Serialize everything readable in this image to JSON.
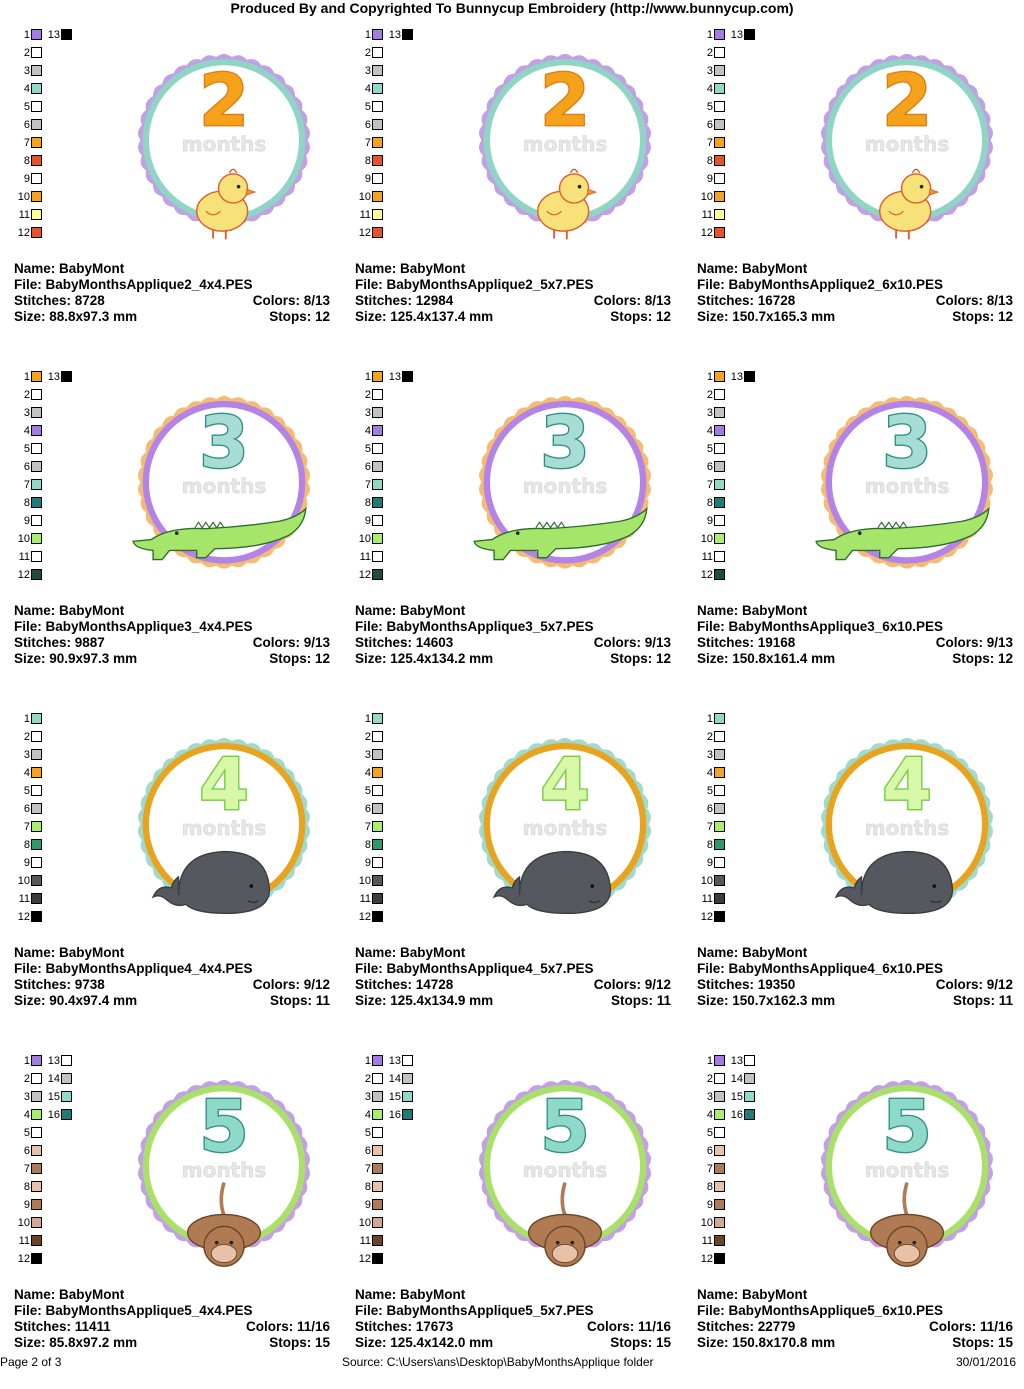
{
  "header": "Produced By and Copyrighted To Bunnycup Embroidery (http://www.bunnycup.com)",
  "footer": {
    "page": "Page 2 of 3",
    "source": "Source: C:\\Users\\ans\\Desktop\\BabyMonthsApplique folder",
    "date": "30/01/2016"
  },
  "groups": [
    {
      "digit": "2",
      "months": "months",
      "animal": "chick",
      "colors": {
        "frame_outer": "#b98ee0",
        "frame_inner": "#8fd4c4",
        "digit_fill": "#f5a21b",
        "digit_edge": "#e07c12",
        "animal": "#f7e27a",
        "animal_edge": "#e05a2a"
      },
      "swatches": [
        {
          "n": "1",
          "c": "#a37be6"
        },
        {
          "n": "2",
          "c": "#ffffff"
        },
        {
          "n": "3",
          "c": "#c2c2c2"
        },
        {
          "n": "4",
          "c": "#8fd9c8"
        },
        {
          "n": "5",
          "c": "#ffffff"
        },
        {
          "n": "6",
          "c": "#c2c2c2"
        },
        {
          "n": "7",
          "c": "#f7a21b"
        },
        {
          "n": "8",
          "c": "#e8522a"
        },
        {
          "n": "9",
          "c": "#ffffff"
        },
        {
          "n": "10",
          "c": "#f7a21b"
        },
        {
          "n": "11",
          "c": "#ffff9a"
        },
        {
          "n": "12",
          "c": "#e8522a"
        },
        {
          "n": "13",
          "c": "#000000"
        }
      ],
      "designs": [
        {
          "name": "Name: BabyMont",
          "file": "File: BabyMonthsApplique2_4x4.PES",
          "stitches": "Stitches: 8728",
          "colors": "Colors: 8/13",
          "size": "Size: 88.8x97.3 mm",
          "stops": "Stops: 12"
        },
        {
          "name": "Name: BabyMont",
          "file": "File: BabyMonthsApplique2_5x7.PES",
          "stitches": "Stitches: 12984",
          "colors": "Colors: 8/13",
          "size": "Size: 125.4x137.4 mm",
          "stops": "Stops: 12"
        },
        {
          "name": "Name: BabyMont",
          "file": "File: BabyMonthsApplique2_6x10.PES",
          "stitches": "Stitches: 16728",
          "colors": "Colors: 8/13",
          "size": "Size: 150.7x165.3 mm",
          "stops": "Stops: 12"
        }
      ]
    },
    {
      "digit": "3",
      "months": "months",
      "animal": "alligator",
      "colors": {
        "frame_outer": "#f2b05a",
        "frame_inner": "#b483e6",
        "digit_fill": "#a8ddd6",
        "digit_edge": "#2f8f8a",
        "animal": "#a5e66a",
        "animal_edge": "#2e6b2e"
      },
      "swatches": [
        {
          "n": "1",
          "c": "#f7a21b"
        },
        {
          "n": "2",
          "c": "#ffffff"
        },
        {
          "n": "3",
          "c": "#c2c2c2"
        },
        {
          "n": "4",
          "c": "#a37be6"
        },
        {
          "n": "5",
          "c": "#ffffff"
        },
        {
          "n": "6",
          "c": "#c2c2c2"
        },
        {
          "n": "7",
          "c": "#8fd9c8"
        },
        {
          "n": "8",
          "c": "#1f7a7a"
        },
        {
          "n": "9",
          "c": "#ffffff"
        },
        {
          "n": "10",
          "c": "#a8f06a"
        },
        {
          "n": "11",
          "c": "#ffffff"
        },
        {
          "n": "12",
          "c": "#1e4d3a"
        },
        {
          "n": "13",
          "c": "#000000"
        }
      ],
      "designs": [
        {
          "name": "Name: BabyMont",
          "file": "File: BabyMonthsApplique3_4x4.PES",
          "stitches": "Stitches: 9887",
          "colors": "Colors: 9/13",
          "size": "Size: 90.9x97.3 mm",
          "stops": "Stops: 12"
        },
        {
          "name": "Name: BabyMont",
          "file": "File: BabyMonthsApplique3_5x7.PES",
          "stitches": "Stitches: 14603",
          "colors": "Colors: 9/13",
          "size": "Size: 125.4x134.2 mm",
          "stops": "Stops: 12"
        },
        {
          "name": "Name: BabyMont",
          "file": "File: BabyMonthsApplique3_6x10.PES",
          "stitches": "Stitches: 19168",
          "colors": "Colors: 9/13",
          "size": "Size: 150.8x161.4 mm",
          "stops": "Stops: 12"
        }
      ]
    },
    {
      "digit": "4",
      "months": "months",
      "animal": "whale",
      "colors": {
        "frame_outer": "#8fd4c4",
        "frame_inner": "#e8a41e",
        "digit_fill": "#d8f7a8",
        "digit_edge": "#6fcf3a",
        "animal": "#55585e",
        "animal_edge": "#3a3c40"
      },
      "swatches": [
        {
          "n": "1",
          "c": "#8fd9c8"
        },
        {
          "n": "2",
          "c": "#ffffff"
        },
        {
          "n": "3",
          "c": "#c2c2c2"
        },
        {
          "n": "4",
          "c": "#f7a21b"
        },
        {
          "n": "5",
          "c": "#ffffff"
        },
        {
          "n": "6",
          "c": "#c2c2c2"
        },
        {
          "n": "7",
          "c": "#a8f06a"
        },
        {
          "n": "8",
          "c": "#2e9a6a"
        },
        {
          "n": "9",
          "c": "#ffffff"
        },
        {
          "n": "10",
          "c": "#55585e"
        },
        {
          "n": "11",
          "c": "#3a3c40"
        },
        {
          "n": "12",
          "c": "#000000"
        }
      ],
      "designs": [
        {
          "name": "Name: BabyMont",
          "file": "File: BabyMonthsApplique4_4x4.PES",
          "stitches": "Stitches: 9738",
          "colors": "Colors: 9/12",
          "size": "Size: 90.4x97.4 mm",
          "stops": "Stops: 11"
        },
        {
          "name": "Name: BabyMont",
          "file": "File: BabyMonthsApplique4_5x7.PES",
          "stitches": "Stitches: 14728",
          "colors": "Colors: 9/12",
          "size": "Size: 125.4x134.9 mm",
          "stops": "Stops: 11"
        },
        {
          "name": "Name: BabyMont",
          "file": "File: BabyMonthsApplique4_6x10.PES",
          "stitches": "Stitches: 19350",
          "colors": "Colors: 9/12",
          "size": "Size: 150.7x162.3 mm",
          "stops": "Stops: 11"
        }
      ]
    },
    {
      "digit": "5",
      "months": "months",
      "animal": "monkey",
      "colors": {
        "frame_outer": "#b98ee0",
        "frame_inner": "#a8e06a",
        "digit_fill": "#8fd9c8",
        "digit_edge": "#2f8f8a",
        "animal": "#b07a52",
        "animal_edge": "#6b4428"
      },
      "swatches": [
        {
          "n": "1",
          "c": "#a37be6"
        },
        {
          "n": "2",
          "c": "#ffffff"
        },
        {
          "n": "3",
          "c": "#c2c2c2"
        },
        {
          "n": "4",
          "c": "#a8f06a"
        },
        {
          "n": "5",
          "c": "#ffffff"
        },
        {
          "n": "6",
          "c": "#e8c2a8"
        },
        {
          "n": "7",
          "c": "#b07a52"
        },
        {
          "n": "8",
          "c": "#e8c2a8"
        },
        {
          "n": "9",
          "c": "#b07a52"
        },
        {
          "n": "10",
          "c": "#d4a890"
        },
        {
          "n": "11",
          "c": "#6b4428"
        },
        {
          "n": "12",
          "c": "#000000"
        },
        {
          "n": "13",
          "c": "#ffffff"
        },
        {
          "n": "14",
          "c": "#c2c2c2"
        },
        {
          "n": "15",
          "c": "#8fd9c8"
        },
        {
          "n": "16",
          "c": "#1f7a7a"
        }
      ],
      "designs": [
        {
          "name": "Name: BabyMont",
          "file": "File: BabyMonthsApplique5_4x4.PES",
          "stitches": "Stitches: 11411",
          "colors": "Colors: 11/16",
          "size": "Size: 85.8x97.2 mm",
          "stops": "Stops: 15"
        },
        {
          "name": "Name: BabyMont",
          "file": "File: BabyMonthsApplique5_5x7.PES",
          "stitches": "Stitches: 17673",
          "colors": "Colors: 11/16",
          "size": "Size: 125.4x142.0 mm",
          "stops": "Stops: 15"
        },
        {
          "name": "Name: BabyMont",
          "file": "File: BabyMonthsApplique5_6x10.PES",
          "stitches": "Stitches: 22779",
          "colors": "Colors: 11/16",
          "size": "Size: 150.8x170.8 mm",
          "stops": "Stops: 15"
        }
      ]
    }
  ]
}
